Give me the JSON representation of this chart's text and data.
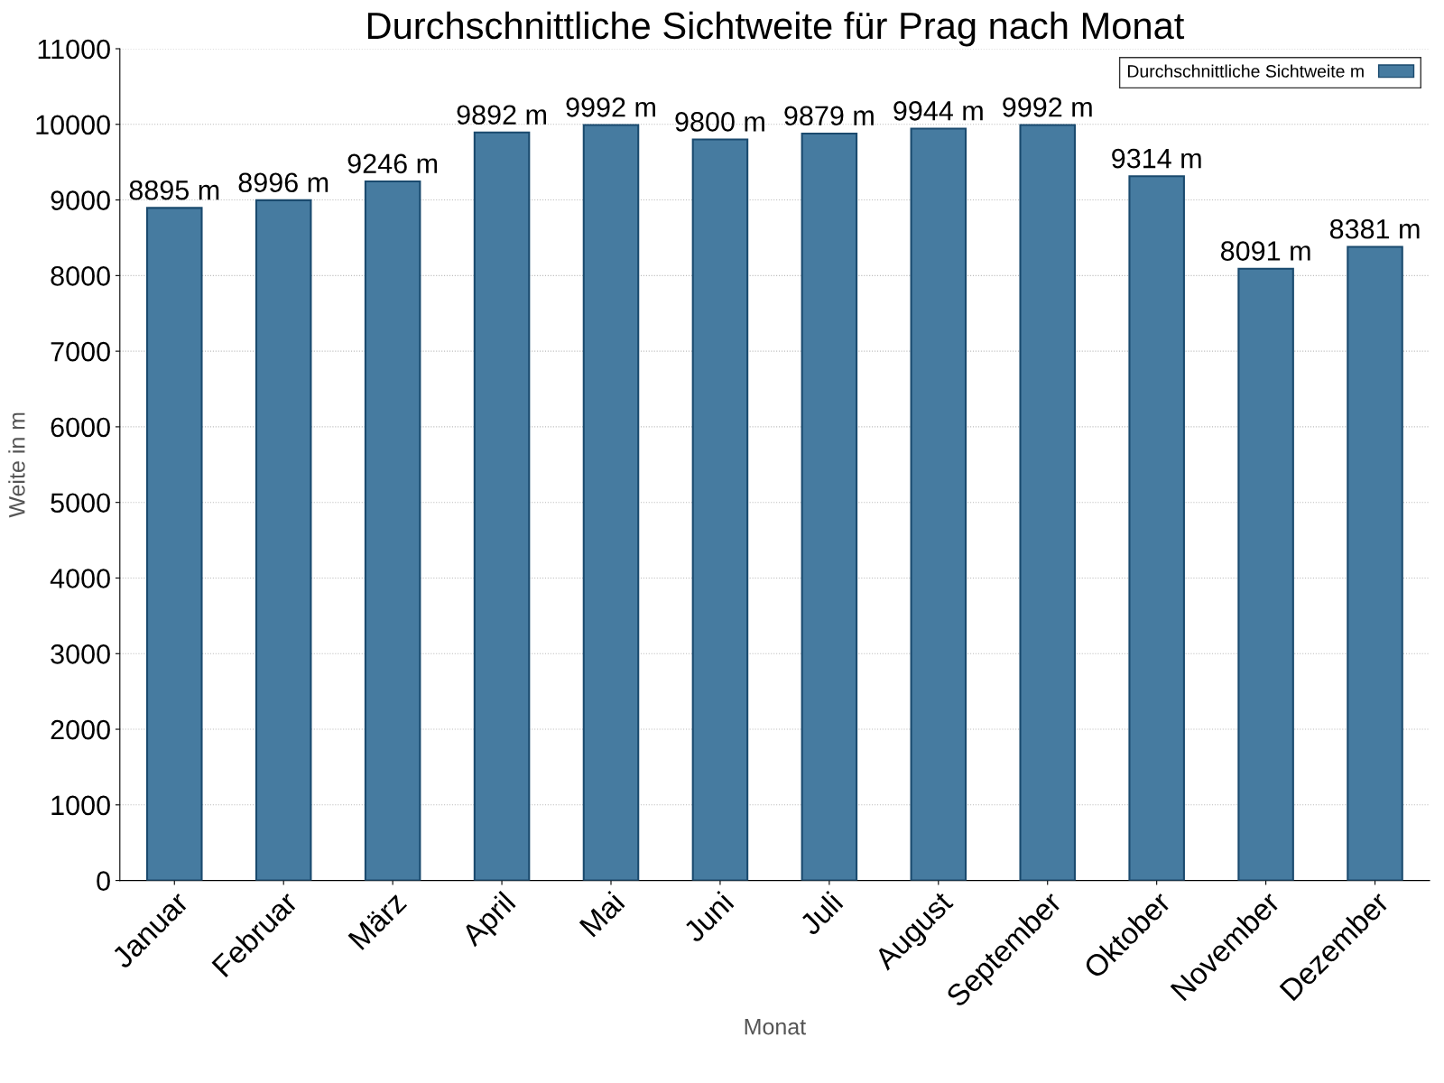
{
  "chart_data": {
    "type": "bar",
    "title": "Durchschnittliche Sichtweite für Prag nach Monat",
    "xlabel": "Monat",
    "ylabel": "Weite in m",
    "categories": [
      "Januar",
      "Februar",
      "März",
      "April",
      "Mai",
      "Juni",
      "Juli",
      "August",
      "September",
      "Oktober",
      "November",
      "Dezember"
    ],
    "series": [
      {
        "name": "Durchschnittliche Sichtweite m",
        "color": "#467ba0",
        "values": [
          8895,
          8996,
          9246,
          9892,
          9992,
          9800,
          9879,
          9944,
          9992,
          9314,
          8091,
          8381
        ],
        "value_labels": [
          "8895 m",
          "8996 m",
          "9246 m",
          "9892 m",
          "9992 m",
          "9800 m",
          "9879 m",
          "9944 m",
          "9992 m",
          "9314 m",
          "8091 m",
          "8381 m"
        ]
      }
    ],
    "ylim": [
      0,
      11000
    ],
    "yticks": [
      0,
      1000,
      2000,
      3000,
      4000,
      5000,
      6000,
      7000,
      8000,
      9000,
      10000,
      11000
    ],
    "grid": "y",
    "legend": "top right"
  }
}
